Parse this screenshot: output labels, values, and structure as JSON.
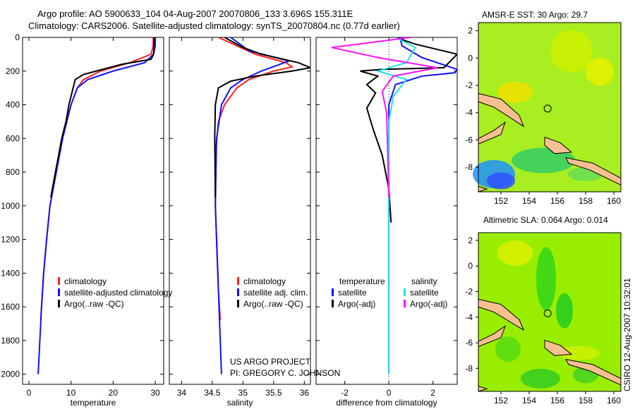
{
  "title_line1": "Argo profile: AO 5900633_104 04-Aug-2007 20070806_133 3.696S 155.311E",
  "title_line2": "Climatology: CARS2006. Satellite-adjusted climatology: synTS_20070804.nc (0.77d earlier)",
  "credit": "US ARGO PROJECT",
  "pi": "PI: GREGORY C. JOHNSON",
  "stamp": "CSIRO 12-Aug-2007 10:32:01",
  "colors": {
    "climatology": "#ff2020",
    "satellite": "#1010ff",
    "argo": "#000000",
    "sal_satellite": "#20e0f0",
    "sal_argo": "#ff10ff"
  },
  "chart_data": [
    {
      "type": "line",
      "xlabel": "temperature",
      "ylabel": "",
      "xlim": [
        -1.5,
        32
      ],
      "ylim": [
        2060,
        0
      ],
      "xticks": [
        "0",
        "10",
        "20",
        "30"
      ],
      "xtick_values": [
        0,
        10,
        20,
        30
      ],
      "yticks": [
        "0",
        "200",
        "400",
        "600",
        "800",
        "1000",
        "1200",
        "1400",
        "1600",
        "1800",
        "2000"
      ],
      "legend": [
        "climatology",
        "satellite-adjusted climatology",
        "Argo(..raw -QC)"
      ],
      "series": [
        {
          "name": "climatology",
          "color": "#ff2020",
          "points": [
            [
              29.5,
              0
            ],
            [
              29.5,
              50
            ],
            [
              29,
              100
            ],
            [
              24,
              150
            ],
            [
              17,
              200
            ],
            [
              13,
              250
            ],
            [
              11.5,
              300
            ],
            [
              10,
              400
            ],
            [
              9,
              500
            ],
            [
              8,
              600
            ],
            [
              6.5,
              800
            ],
            [
              5,
              1000
            ],
            [
              4.2,
              1200
            ],
            [
              3.5,
              1400
            ],
            [
              3,
              1600
            ],
            [
              2.8,
              1680
            ]
          ]
        },
        {
          "name": "satellite-adjusted climatology",
          "color": "#1010ff",
          "points": [
            [
              30,
              0
            ],
            [
              30,
              50
            ],
            [
              29.6,
              100
            ],
            [
              27.5,
              150
            ],
            [
              20,
              200
            ],
            [
              14,
              250
            ],
            [
              11.5,
              300
            ],
            [
              10,
              400
            ],
            [
              9,
              500
            ],
            [
              8,
              600
            ],
            [
              6.5,
              800
            ],
            [
              5,
              1000
            ],
            [
              4.2,
              1200
            ],
            [
              3.5,
              1400
            ],
            [
              3,
              1600
            ],
            [
              2.6,
              1800
            ],
            [
              2.2,
              2000
            ]
          ]
        },
        {
          "name": "Argo(..raw -QC)",
          "color": "#000000",
          "points": [
            [
              29.8,
              0
            ],
            [
              29.6,
              100
            ],
            [
              29,
              130
            ],
            [
              22,
              160
            ],
            [
              16,
              200
            ],
            [
              13,
              220
            ],
            [
              11,
              250
            ],
            [
              10.5,
              300
            ],
            [
              9.5,
              400
            ],
            [
              8.8,
              500
            ],
            [
              7.8,
              600
            ],
            [
              6.3,
              800
            ],
            [
              5.2,
              950
            ]
          ]
        }
      ]
    },
    {
      "type": "line",
      "xlabel": "salinity",
      "ylabel": "",
      "xlim": [
        33.8,
        36.1
      ],
      "ylim": [
        2060,
        0
      ],
      "xticks": [
        "34",
        "34.5",
        "35",
        "35.5",
        "36"
      ],
      "xtick_values": [
        34,
        34.5,
        35,
        35.5,
        36
      ],
      "legend": [
        "climatology",
        "satellite adj. clim.",
        "Argo(..raw -QC)"
      ],
      "series": [
        {
          "name": "climatology",
          "color": "#ff2020",
          "points": [
            [
              34.6,
              0
            ],
            [
              34.9,
              50
            ],
            [
              35.2,
              100
            ],
            [
              35.7,
              150
            ],
            [
              35.8,
              175
            ],
            [
              35.5,
              200
            ],
            [
              35.1,
              250
            ],
            [
              34.9,
              300
            ],
            [
              34.7,
              400
            ],
            [
              34.6,
              500
            ],
            [
              34.55,
              700
            ],
            [
              34.55,
              1000
            ],
            [
              34.6,
              1500
            ],
            [
              34.63,
              1680
            ]
          ]
        },
        {
          "name": "satellite adj. clim.",
          "color": "#1010ff",
          "points": [
            [
              34.8,
              0
            ],
            [
              35.1,
              80
            ],
            [
              35.75,
              140
            ],
            [
              35.3,
              200
            ],
            [
              35.0,
              250
            ],
            [
              34.8,
              300
            ],
            [
              34.65,
              400
            ],
            [
              34.57,
              600
            ],
            [
              34.55,
              1000
            ],
            [
              34.6,
              1500
            ],
            [
              34.65,
              2000
            ]
          ]
        },
        {
          "name": "Argo(..raw -QC)",
          "color": "#000000",
          "points": [
            [
              34.7,
              0
            ],
            [
              35.0,
              60
            ],
            [
              35.3,
              100
            ],
            [
              35.9,
              150
            ],
            [
              36.1,
              180
            ],
            [
              35.8,
              200
            ],
            [
              35.2,
              230
            ],
            [
              34.8,
              260
            ],
            [
              34.6,
              300
            ],
            [
              34.55,
              400
            ],
            [
              34.54,
              600
            ],
            [
              34.55,
              950
            ]
          ]
        }
      ]
    },
    {
      "type": "line",
      "xlabel": "difference from climatology",
      "ylabel": "",
      "xlim": [
        -3.3,
        3.1
      ],
      "ylim": [
        2060,
        0
      ],
      "xticks": [
        "-2",
        "0",
        "2"
      ],
      "xtick_values": [
        -2,
        0,
        2
      ],
      "legend_headers": [
        "temperature",
        "salinity"
      ],
      "legend": [
        "satellite",
        "Argo(-adj)",
        "satellite",
        "Argo(-adj)"
      ],
      "series": [
        {
          "name": "temperature satellite",
          "color": "#1010ff",
          "points": [
            [
              0.5,
              0
            ],
            [
              0.6,
              50
            ],
            [
              1.5,
              120
            ],
            [
              3.1,
              190
            ],
            [
              3,
              210
            ],
            [
              1.5,
              230
            ],
            [
              0.3,
              280
            ],
            [
              0,
              400
            ],
            [
              0,
              2000
            ]
          ]
        },
        {
          "name": "temperature Argo(-adj)",
          "color": "#000000",
          "points": [
            [
              0.3,
              0
            ],
            [
              1.2,
              40
            ],
            [
              3.1,
              100
            ],
            [
              2.5,
              180
            ],
            [
              -0.3,
              190
            ],
            [
              -1.3,
              200
            ],
            [
              -0.5,
              230
            ],
            [
              -1,
              280
            ],
            [
              -0.6,
              330
            ],
            [
              -1,
              420
            ],
            [
              -0.7,
              550
            ],
            [
              -0.3,
              700
            ],
            [
              0,
              900
            ],
            [
              0.1,
              1100
            ]
          ]
        },
        {
          "name": "salinity satellite",
          "color": "#20e0f0",
          "points": [
            [
              0.3,
              0
            ],
            [
              1.2,
              60
            ],
            [
              0.8,
              150
            ],
            [
              -0.5,
              200
            ],
            [
              0.8,
              250
            ],
            [
              0.2,
              350
            ],
            [
              0,
              500
            ],
            [
              0,
              2000
            ]
          ]
        },
        {
          "name": "salinity Argo(-adj)",
          "color": "#ff10ff",
          "points": [
            [
              1,
              0
            ],
            [
              -2.6,
              60
            ],
            [
              -0.5,
              120
            ],
            [
              2.2,
              180
            ],
            [
              0.2,
              230
            ],
            [
              -0.3,
              320
            ],
            [
              -0.1,
              450
            ],
            [
              0,
              950
            ]
          ]
        }
      ]
    }
  ],
  "maps": [
    {
      "title": "AMSR-E SST: 30 Argo: 29.7",
      "xticks": [
        "152",
        "154",
        "156",
        "158",
        "160"
      ],
      "yticks": [
        "2",
        "0",
        "-2",
        "-4",
        "-6",
        "-8"
      ]
    },
    {
      "title": "Altimetric SLA: 0.064 Argo: 0.014",
      "xticks": [
        "152",
        "154",
        "156",
        "158",
        "160"
      ],
      "yticks": [
        "2",
        "0",
        "-2",
        "-4",
        "-6",
        "-8"
      ]
    }
  ]
}
